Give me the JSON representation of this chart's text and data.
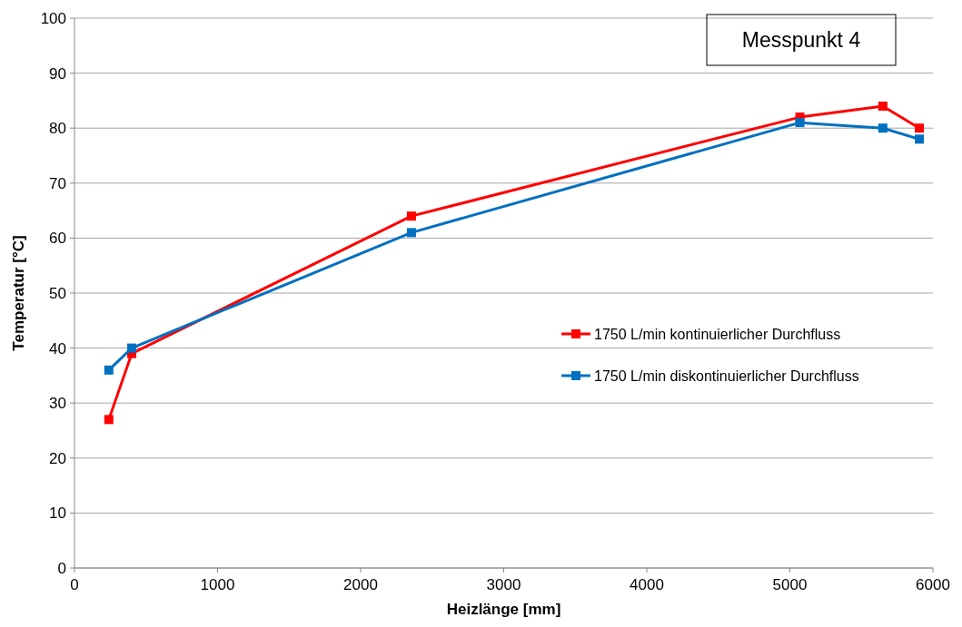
{
  "chart_data": {
    "type": "line",
    "xlabel": "Heizlänge [mm]",
    "ylabel": "Temperatur [°C]",
    "annotations": [
      "Messpunkt 4"
    ],
    "xlim": [
      0,
      6000
    ],
    "xticks": [
      0,
      1000,
      2000,
      3000,
      4000,
      5000,
      6000
    ],
    "ylim": [
      0,
      100
    ],
    "yticks": [
      0,
      10,
      20,
      30,
      40,
      50,
      60,
      70,
      80,
      90,
      100
    ],
    "grid": "y",
    "legend": "right",
    "marker": "square",
    "line_style": "solid",
    "series": [
      {
        "name": "1750 L/min kontinuierlicher Durchfluss",
        "color": "#ff0000",
        "x": [
          240,
          400,
          2355,
          5070,
          5650,
          5905
        ],
        "values": [
          27,
          39,
          64,
          82,
          84,
          80
        ]
      },
      {
        "name": "1750 L/min diskontinuierlicher Durchfluss",
        "color": "#0070c0",
        "x": [
          240,
          400,
          2355,
          5070,
          5650,
          5905
        ],
        "values": [
          36,
          40,
          61,
          81,
          80,
          78
        ]
      }
    ]
  }
}
